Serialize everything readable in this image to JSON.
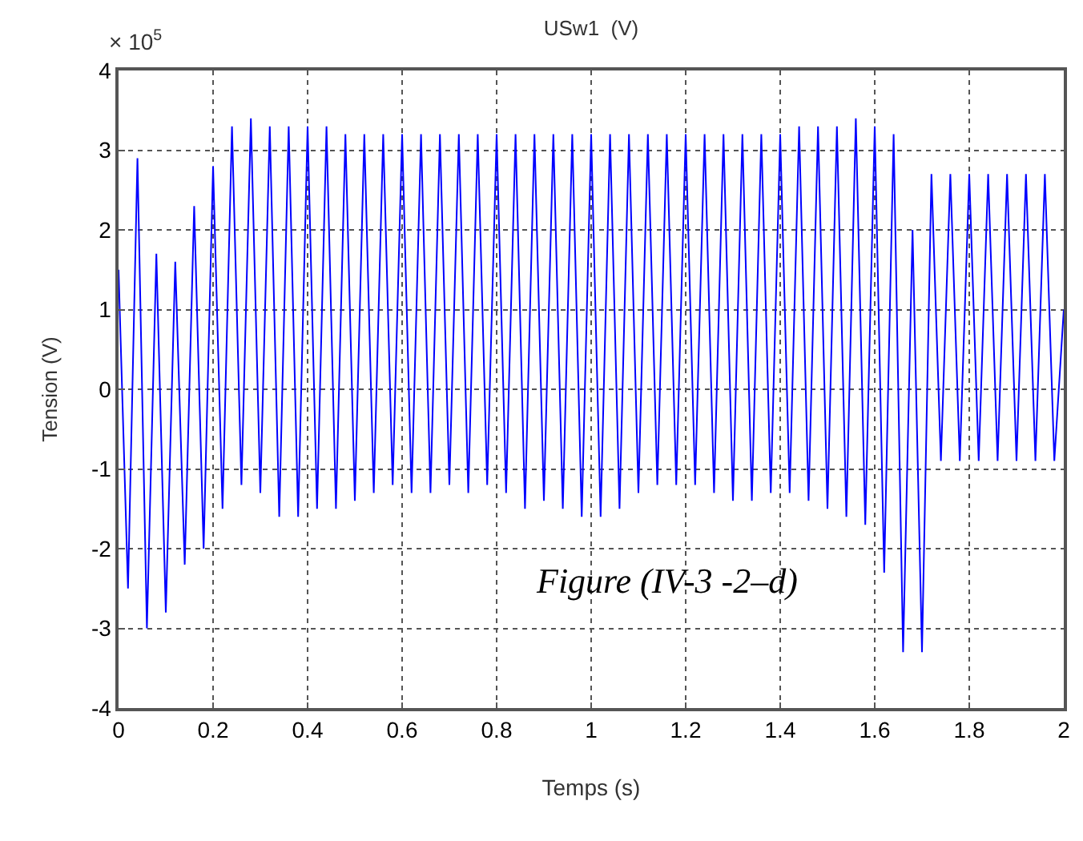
{
  "chart_data": {
    "type": "line",
    "title": "USw1  (V)",
    "xlabel": "Temps (s)",
    "ylabel": "Tension (V)",
    "annotations": [
      "× 10$^{5}$",
      "Figure (IV-3 -2–d)"
    ],
    "xlim": [
      0,
      2
    ],
    "xticks": [
      0,
      0.2,
      0.4,
      0.6,
      0.8,
      1,
      1.2,
      1.4,
      1.6,
      1.8,
      2
    ],
    "ylim": [
      -4,
      4
    ],
    "yticks": [
      -4,
      -3,
      -2,
      -1,
      0,
      1,
      2,
      3,
      4
    ],
    "grid": true,
    "marker": "none",
    "line_style": "solid",
    "series": [
      {
        "color": "#0000ff",
        "x": [
          0,
          0.02,
          0.04,
          0.06,
          0.08,
          0.1,
          0.12,
          0.14,
          0.16,
          0.18,
          0.2,
          0.22,
          0.24,
          0.26,
          0.28,
          0.3,
          0.32,
          0.34,
          0.36,
          0.38,
          0.4,
          0.42,
          0.44,
          0.46,
          0.48,
          0.5,
          0.52,
          0.54,
          0.56,
          0.58,
          0.6,
          0.62,
          0.64,
          0.66,
          0.68,
          0.7,
          0.72,
          0.74,
          0.76,
          0.78,
          0.8,
          0.82,
          0.84,
          0.86,
          0.88,
          0.9,
          0.92,
          0.94,
          0.96,
          0.98,
          1,
          1.02,
          1.04,
          1.06,
          1.08,
          1.1,
          1.12,
          1.14,
          1.16,
          1.18,
          1.2,
          1.22,
          1.24,
          1.26,
          1.28,
          1.3,
          1.32,
          1.34,
          1.36,
          1.38,
          1.4,
          1.42,
          1.44,
          1.46,
          1.48,
          1.5,
          1.52,
          1.54,
          1.56,
          1.58,
          1.6,
          1.62,
          1.64,
          1.66,
          1.68,
          1.7,
          1.72,
          1.74,
          1.76,
          1.78,
          1.8,
          1.82,
          1.84,
          1.86,
          1.88,
          1.9,
          1.92,
          1.94,
          1.96,
          1.98,
          2
        ],
        "values": [
          1.5,
          -2.5,
          2.9,
          -3.0,
          1.7,
          -2.8,
          1.6,
          -2.2,
          2.3,
          -2.0,
          2.8,
          -1.5,
          3.3,
          -1.2,
          3.4,
          -1.3,
          3.3,
          -1.6,
          3.3,
          -1.6,
          3.3,
          -1.5,
          3.3,
          -1.5,
          3.2,
          -1.4,
          3.2,
          -1.3,
          3.2,
          -1.2,
          3.2,
          -1.3,
          3.2,
          -1.3,
          3.2,
          -1.2,
          3.2,
          -1.3,
          3.2,
          -1.2,
          3.2,
          -1.3,
          3.2,
          -1.5,
          3.2,
          -1.4,
          3.2,
          -1.5,
          3.2,
          -1.6,
          3.2,
          -1.6,
          3.2,
          -1.5,
          3.2,
          -1.3,
          3.2,
          -1.2,
          3.2,
          -1.2,
          3.2,
          -1.2,
          3.2,
          -1.3,
          3.2,
          -1.4,
          3.2,
          -1.4,
          3.2,
          -1.3,
          3.2,
          -1.3,
          3.3,
          -1.4,
          3.3,
          -1.5,
          3.3,
          -1.6,
          3.4,
          -1.7,
          3.3,
          -2.3,
          3.2,
          -3.3,
          2.0,
          -3.3,
          2.7,
          -0.9,
          2.7,
          -0.9,
          2.7,
          -0.9,
          2.7,
          -0.9,
          2.7,
          -0.9,
          2.7,
          -0.9,
          2.7,
          -0.9,
          1.0
        ]
      }
    ]
  }
}
